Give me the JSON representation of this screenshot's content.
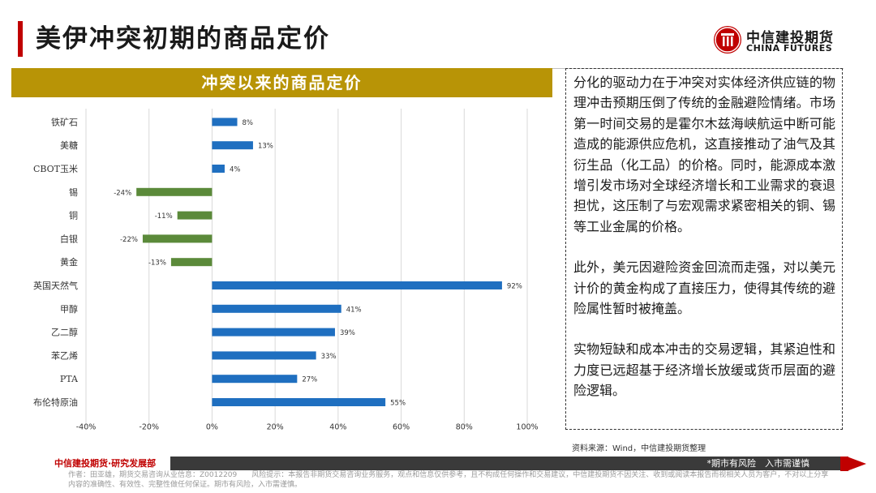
{
  "page": {
    "title": "美伊冲突初期的商品定价",
    "logo_cn": "中信建投期货",
    "logo_en": "CHINA FUTURES"
  },
  "chart_banner": "冲突以来的商品定价",
  "chart_data": {
    "type": "bar",
    "orientation": "horizontal",
    "title": "冲突以来的商品定价",
    "categories": [
      "铁矿石",
      "美糖",
      "CBOT玉米",
      "锡",
      "铜",
      "白银",
      "黄金",
      "英国天然气",
      "甲醇",
      "乙二醇",
      "苯乙烯",
      "PTA",
      "布伦特原油"
    ],
    "values": [
      8,
      13,
      4,
      -24,
      -11,
      -22,
      -13,
      92,
      41,
      39,
      33,
      27,
      55
    ],
    "data_labels": [
      "8%",
      "13%",
      "4%",
      "-24%",
      "-11%",
      "-22%",
      "-13%",
      "92%",
      "41%",
      "39%",
      "33%",
      "27%",
      "55%"
    ],
    "xlim": [
      -40,
      100
    ],
    "xticks": [
      -40,
      -20,
      0,
      20,
      40,
      60,
      80,
      100
    ],
    "xtick_labels": [
      "-40%",
      "-20%",
      "0%",
      "20%",
      "40%",
      "60%",
      "80%",
      "100%"
    ],
    "unit": "%",
    "grid": "vertical",
    "colors": {
      "positive": "#1f6fc0",
      "negative": "#5b8a3a"
    }
  },
  "text_box": {
    "paragraphs": [
      "分化的驱动力在于冲突对实体经济供应链的物理冲击预期压倒了传统的金融避险情绪。市场第一时间交易的是霍尔木兹海峡航运中断可能造成的能源供应危机，这直接推动了油气及其衍生品（化工品）的价格。同时，能源成本激增引发市场对全球经济增长和工业需求的衰退担忧，这压制了与宏观需求紧密相关的铜、锡等工业金属的价格。",
      "此外，美元因避险资金回流而走强，对以美元计价的黄金构成了直接压力，使得其传统的避险属性暂时被掩盖。",
      "实物短缺和成本冲击的交易逻辑，其紧迫性和力度已远超基于经济增长放缓或货币层面的避险逻辑。"
    ]
  },
  "source": "资料来源：Wind，中信建投期货整理",
  "footer": {
    "brand": "中信建投期货·研究发展部",
    "slogan": "*期市有风险　入市需谨慎",
    "disclaimer": "作者：田亚雄，期货交易咨询从业信息：Z0012209　　风险提示：本报告非期货交易咨询业务服务，观点和信息仅供参考，且不构成任何操作和交易建议，中信建投期货不因关注、收到或阅读本报告而视相关人员为客户，不对以上分享内容的准确性、有效性、完整性做任何保证。期市有风险，入市需谨慎。"
  }
}
